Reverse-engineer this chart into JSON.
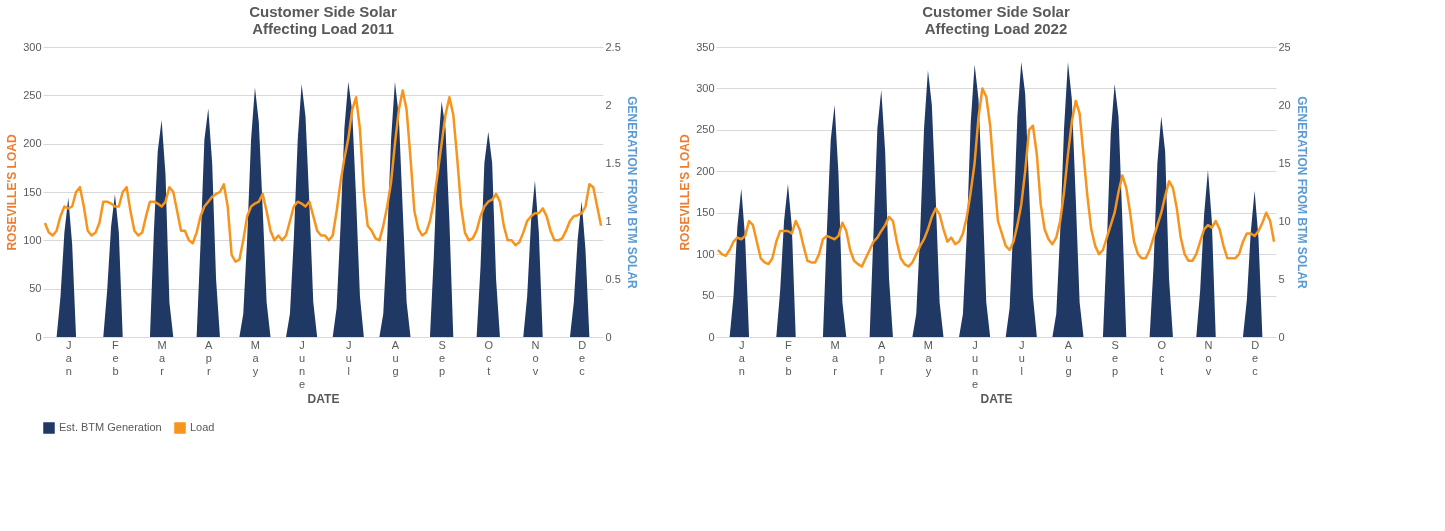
{
  "chart_data": [
    {
      "type": "line",
      "title": "Customer Side Solar\nAffecting Load 2011",
      "xlabel": "DATE",
      "ylabel": "ROSEVILLE'S LOAD",
      "y2label": "GENERATION FROM BTM SOLAR",
      "legend": "bottom",
      "grid": "y",
      "categories": [
        null,
        null,
        null,
        null,
        null,
        null,
        "Jan",
        null,
        null,
        null,
        null,
        null,
        null,
        null,
        null,
        null,
        null,
        null,
        "Feb",
        null,
        null,
        null,
        null,
        null,
        null,
        null,
        null,
        null,
        null,
        null,
        "Mar",
        null,
        null,
        null,
        null,
        null,
        null,
        null,
        null,
        null,
        null,
        null,
        "Apr",
        null,
        null,
        null,
        null,
        null,
        null,
        null,
        null,
        null,
        null,
        null,
        "May",
        null,
        null,
        null,
        null,
        null,
        null,
        null,
        null,
        null,
        null,
        null,
        "June",
        null,
        null,
        null,
        null,
        null,
        null,
        null,
        null,
        null,
        null,
        null,
        "Jul",
        null,
        null,
        null,
        null,
        null,
        null,
        null,
        null,
        null,
        null,
        null,
        "Aug",
        null,
        null,
        null,
        null,
        null,
        null,
        null,
        null,
        null,
        null,
        null,
        "Sep",
        null,
        null,
        null,
        null,
        null,
        null,
        null,
        null,
        null,
        null,
        null,
        "Oct",
        null,
        null,
        null,
        null,
        null,
        null,
        null,
        null,
        null,
        null,
        null,
        "Nov",
        null,
        null,
        null,
        null,
        null,
        null,
        null,
        null,
        null,
        null,
        null,
        "Dec",
        null,
        null,
        null,
        null,
        null
      ],
      "ylim": [
        0,
        300
      ],
      "yticks": [
        0,
        50,
        100,
        150,
        200,
        250,
        300
      ],
      "y2lim": [
        0,
        2.5
      ],
      "y2ticks": [
        0,
        0.5,
        1,
        1.5,
        2,
        2.5
      ],
      "series": [
        {
          "name": "Est. BTM Generation",
          "type": "area",
          "axis": "y2",
          "color": "#1f3864",
          "values": [
            0,
            0,
            0,
            0,
            0.35,
            0.9,
            1.2,
            0.8,
            0,
            0,
            0,
            0,
            0,
            0,
            0,
            0,
            0.4,
            0.95,
            1.23,
            0.9,
            0,
            0,
            0,
            0,
            0,
            0,
            0,
            0,
            0.9,
            1.6,
            1.87,
            1.4,
            0.3,
            0,
            0,
            0,
            0,
            0,
            0,
            0,
            0.8,
            1.7,
            1.97,
            1.5,
            0.5,
            0,
            0,
            0,
            0,
            0,
            0,
            0.2,
            0.85,
            1.7,
            2.15,
            1.85,
            1.1,
            0.3,
            0,
            0,
            0,
            0,
            0,
            0.2,
            0.85,
            1.7,
            2.18,
            1.9,
            1.15,
            0.3,
            0,
            0,
            0,
            0,
            0,
            0.25,
            0.95,
            1.8,
            2.2,
            1.95,
            1.2,
            0.35,
            0,
            0,
            0,
            0,
            0,
            0.2,
            0.85,
            1.7,
            2.2,
            1.9,
            1.1,
            0.3,
            0,
            0,
            0,
            0,
            0,
            0,
            0.7,
            1.6,
            2.03,
            1.8,
            1.0,
            0,
            0,
            0,
            0,
            0,
            0,
            0,
            0.6,
            1.5,
            1.77,
            1.5,
            0.5,
            0,
            0,
            0,
            0,
            0,
            0,
            0,
            0.35,
            1.0,
            1.35,
            0.9,
            0,
            0,
            0,
            0,
            0,
            0,
            0,
            0,
            0.3,
            0.85,
            1.17,
            0.75,
            0,
            0,
            0,
            0
          ]
        },
        {
          "name": "Load",
          "type": "line",
          "axis": "y",
          "color": "#f7941d",
          "values": [
            118,
            108,
            105,
            110,
            125,
            135,
            133,
            135,
            150,
            155,
            135,
            110,
            105,
            108,
            118,
            140,
            140,
            138,
            135,
            135,
            150,
            155,
            130,
            110,
            105,
            108,
            125,
            140,
            140,
            138,
            135,
            140,
            155,
            150,
            130,
            110,
            110,
            100,
            97,
            108,
            125,
            135,
            140,
            145,
            148,
            150,
            158,
            135,
            85,
            78,
            80,
            100,
            125,
            135,
            138,
            140,
            148,
            130,
            110,
            100,
            105,
            100,
            105,
            120,
            135,
            140,
            138,
            135,
            140,
            125,
            110,
            105,
            105,
            100,
            105,
            130,
            160,
            185,
            205,
            235,
            248,
            215,
            150,
            115,
            110,
            102,
            100,
            115,
            135,
            160,
            200,
            235,
            255,
            235,
            185,
            130,
            112,
            105,
            108,
            120,
            140,
            170,
            200,
            230,
            248,
            230,
            185,
            135,
            108,
            100,
            102,
            110,
            125,
            135,
            140,
            142,
            148,
            140,
            115,
            100,
            100,
            95,
            98,
            108,
            120,
            125,
            128,
            128,
            133,
            125,
            110,
            100,
            100,
            102,
            110,
            120,
            125,
            126,
            128,
            135,
            158,
            155,
            135,
            115
          ]
        }
      ]
    },
    {
      "type": "line",
      "title": "Customer Side Solar\nAffecting Load 2022",
      "xlabel": "DATE",
      "ylabel": "ROSEVILLE'S LOAD",
      "y2label": "GENERATION FROM BTM SOLAR",
      "legend": "bottom",
      "grid": "y",
      "categories": [
        null,
        null,
        null,
        null,
        null,
        null,
        "Jan",
        null,
        null,
        null,
        null,
        null,
        null,
        null,
        null,
        null,
        null,
        null,
        "Feb",
        null,
        null,
        null,
        null,
        null,
        null,
        null,
        null,
        null,
        null,
        null,
        "Mar",
        null,
        null,
        null,
        null,
        null,
        null,
        null,
        null,
        null,
        null,
        null,
        "Apr",
        null,
        null,
        null,
        null,
        null,
        null,
        null,
        null,
        null,
        null,
        null,
        "May",
        null,
        null,
        null,
        null,
        null,
        null,
        null,
        null,
        null,
        null,
        null,
        "June",
        null,
        null,
        null,
        null,
        null,
        null,
        null,
        null,
        null,
        null,
        null,
        "Jul",
        null,
        null,
        null,
        null,
        null,
        null,
        null,
        null,
        null,
        null,
        null,
        "Aug",
        null,
        null,
        null,
        null,
        null,
        null,
        null,
        null,
        null,
        null,
        null,
        "Sep",
        null,
        null,
        null,
        null,
        null,
        null,
        null,
        null,
        null,
        null,
        null,
        "Oct",
        null,
        null,
        null,
        null,
        null,
        null,
        null,
        null,
        null,
        null,
        null,
        "Nov",
        null,
        null,
        null,
        null,
        null,
        null,
        null,
        null,
        null,
        null,
        null,
        "Dec",
        null,
        null,
        null,
        null,
        null
      ],
      "ylim": [
        0,
        350
      ],
      "yticks": [
        0,
        50,
        100,
        150,
        200,
        250,
        300,
        350
      ],
      "y2lim": [
        0,
        25
      ],
      "y2ticks": [
        0,
        5,
        10,
        15,
        20,
        25
      ],
      "series": [
        {
          "name": "Est. BTM Generation",
          "type": "area",
          "axis": "y2",
          "color": "#1f3864",
          "values": [
            0,
            0,
            0,
            0,
            3.5,
            9.5,
            12.8,
            8.5,
            0,
            0,
            0,
            0,
            0,
            0,
            0,
            0,
            4,
            10,
            13.2,
            9.5,
            0,
            0,
            0,
            0,
            0,
            0,
            0,
            0,
            9,
            17,
            20,
            14,
            3,
            0,
            0,
            0,
            0,
            0,
            0,
            0,
            9,
            18,
            21.3,
            16,
            5,
            0,
            0,
            0,
            0,
            0,
            0,
            2,
            9,
            18,
            23,
            20,
            12,
            3,
            0,
            0,
            0,
            0,
            0,
            2,
            9,
            18.5,
            23.5,
            20.5,
            12.5,
            3,
            0,
            0,
            0,
            0,
            0,
            2.5,
            10,
            19,
            23.7,
            21,
            13,
            3.5,
            0,
            0,
            0,
            0,
            0,
            2,
            9,
            18,
            23.7,
            20.5,
            12,
            3,
            0,
            0,
            0,
            0,
            0,
            0,
            8,
            17.5,
            21.8,
            19,
            10,
            0,
            0,
            0,
            0,
            0,
            0,
            0,
            6,
            15,
            19,
            16,
            5,
            0,
            0,
            0,
            0,
            0,
            0,
            0,
            4,
            10.5,
            14.4,
            10,
            0,
            0,
            0,
            0,
            0,
            0,
            0,
            0,
            3.2,
            9,
            12.6,
            8.5,
            0,
            0,
            0,
            0
          ]
        },
        {
          "name": "Load",
          "type": "line",
          "axis": "y",
          "color": "#f7941d",
          "values": [
            105,
            100,
            98,
            105,
            115,
            120,
            118,
            122,
            140,
            135,
            115,
            95,
            90,
            88,
            95,
            115,
            128,
            128,
            128,
            125,
            140,
            130,
            110,
            92,
            90,
            90,
            100,
            118,
            122,
            120,
            118,
            122,
            138,
            128,
            105,
            92,
            88,
            85,
            95,
            105,
            115,
            120,
            128,
            135,
            145,
            140,
            115,
            95,
            88,
            85,
            90,
            100,
            110,
            118,
            130,
            145,
            155,
            148,
            130,
            115,
            120,
            112,
            115,
            125,
            145,
            175,
            210,
            265,
            300,
            290,
            255,
            195,
            140,
            125,
            110,
            105,
            115,
            135,
            160,
            200,
            250,
            255,
            220,
            160,
            130,
            118,
            112,
            120,
            140,
            175,
            220,
            260,
            285,
            270,
            220,
            170,
            130,
            110,
            100,
            105,
            120,
            135,
            150,
            175,
            195,
            180,
            150,
            115,
            100,
            95,
            95,
            105,
            120,
            135,
            150,
            170,
            188,
            180,
            155,
            120,
            100,
            92,
            92,
            100,
            115,
            130,
            135,
            132,
            140,
            130,
            110,
            95,
            95,
            95,
            100,
            115,
            125,
            125,
            122,
            128,
            138,
            150,
            140,
            115
          ]
        }
      ]
    }
  ]
}
